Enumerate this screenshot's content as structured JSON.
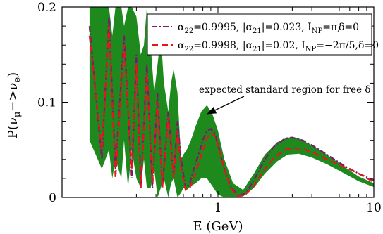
{
  "chart_data": {
    "type": "line",
    "xscale": "log",
    "xlabel": "E (GeV)",
    "ylabel": "P(ν_μ −> ν_e)",
    "xlim": [
      0.1,
      10
    ],
    "ylim": [
      0,
      0.2
    ],
    "xticks": [
      {
        "value": 1,
        "label": "1"
      },
      {
        "value": 10,
        "label": "10"
      }
    ],
    "yticks": [
      {
        "value": 0,
        "label": "0"
      },
      {
        "value": 0.1,
        "label": "0.1"
      },
      {
        "value": 0.2,
        "label": "0.2"
      }
    ],
    "grid": false,
    "legend_position": "top-right",
    "annotation": {
      "text": "expected standard region for free δ",
      "arrow_to": {
        "x": 0.86,
        "y": 0.088
      }
    },
    "band": {
      "name": "",
      "color": "#1e8a1e",
      "x": [
        0.15,
        0.18,
        0.2,
        0.21,
        0.22,
        0.24,
        0.25,
        0.265,
        0.28,
        0.3,
        0.32,
        0.335,
        0.35,
        0.37,
        0.39,
        0.41,
        0.43,
        0.45,
        0.48,
        0.5,
        0.52,
        0.55,
        0.58,
        0.6,
        0.63,
        0.67,
        0.72,
        0.78,
        0.85,
        0.92,
        1.0,
        1.1,
        1.25,
        1.45,
        1.7,
        2.0,
        2.4,
        2.8,
        3.3,
        4.0,
        5.0,
        6.5,
        8.0,
        10.0
      ],
      "upper": [
        0.2,
        0.2,
        0.2,
        0.17,
        0.2,
        0.2,
        0.18,
        0.2,
        0.2,
        0.19,
        0.15,
        0.16,
        0.2,
        0.16,
        0.11,
        0.14,
        0.17,
        0.12,
        0.09,
        0.12,
        0.135,
        0.11,
        0.04,
        0.045,
        0.05,
        0.06,
        0.075,
        0.09,
        0.097,
        0.088,
        0.07,
        0.04,
        0.015,
        0.008,
        0.025,
        0.045,
        0.058,
        0.063,
        0.062,
        0.055,
        0.045,
        0.032,
        0.022,
        0.015
      ],
      "lower": [
        0.06,
        0.03,
        0.05,
        0.02,
        0.04,
        0.02,
        0.06,
        0.01,
        0.05,
        0.02,
        0.01,
        0.04,
        0.01,
        0.01,
        0.03,
        0.0,
        0.01,
        0.02,
        0.0,
        0.015,
        0.02,
        0.0,
        0.005,
        0.01,
        0.008,
        0.012,
        0.015,
        0.02,
        0.02,
        0.012,
        0.003,
        0.0,
        0.0,
        0.001,
        0.01,
        0.025,
        0.038,
        0.045,
        0.046,
        0.042,
        0.035,
        0.025,
        0.017,
        0.011
      ]
    },
    "series": [
      {
        "name": "α22=0.9995, |α21|=0.023, INP=π, δ=0",
        "label_parts": {
          "a22": "=0.9995, |α",
          "a21": "|=0.023, I",
          "np": "=π,",
          "delta": "δ=0"
        },
        "color": "#7a1a6a",
        "dash": "dashdot",
        "x": [
          0.15,
          0.18,
          0.2,
          0.22,
          0.25,
          0.28,
          0.3,
          0.32,
          0.35,
          0.38,
          0.41,
          0.44,
          0.48,
          0.52,
          0.55,
          0.58,
          0.62,
          0.66,
          0.7,
          0.75,
          0.8,
          0.85,
          0.9,
          0.95,
          1.0,
          1.1,
          1.2,
          1.35,
          1.5,
          1.7,
          2.0,
          2.3,
          2.7,
          3.0,
          3.5,
          4.0,
          5.0,
          6.5,
          8.0,
          10.0
        ],
        "y": [
          0.18,
          0.04,
          0.19,
          0.03,
          0.17,
          0.02,
          0.15,
          0.01,
          0.14,
          0.01,
          0.11,
          0.01,
          0.09,
          0.02,
          0.08,
          0.04,
          0.01,
          0.015,
          0.03,
          0.045,
          0.06,
          0.07,
          0.072,
          0.068,
          0.056,
          0.03,
          0.012,
          0.002,
          0.004,
          0.018,
          0.04,
          0.054,
          0.062,
          0.063,
          0.06,
          0.055,
          0.045,
          0.033,
          0.025,
          0.018
        ]
      },
      {
        "name": "α22=0.9998, |α21|=0.02, INP=−2π/5, δ=0",
        "label_parts": {
          "a22": "=0.9998, |α",
          "a21": "|=0.02, I",
          "np": "=−2π/5,",
          "delta": "δ=0"
        },
        "color": "#e8141e",
        "dash": "dash",
        "x": [
          0.15,
          0.18,
          0.2,
          0.22,
          0.25,
          0.28,
          0.3,
          0.32,
          0.35,
          0.38,
          0.41,
          0.44,
          0.48,
          0.52,
          0.55,
          0.58,
          0.62,
          0.66,
          0.7,
          0.75,
          0.8,
          0.85,
          0.9,
          0.95,
          1.0,
          1.1,
          1.2,
          1.35,
          1.5,
          1.7,
          2.0,
          2.3,
          2.7,
          3.0,
          3.5,
          4.0,
          5.0,
          6.5,
          8.0,
          10.0
        ],
        "y": [
          0.17,
          0.05,
          0.18,
          0.02,
          0.16,
          0.03,
          0.14,
          0.01,
          0.13,
          0.015,
          0.1,
          0.01,
          0.085,
          0.02,
          0.07,
          0.03,
          0.008,
          0.01,
          0.02,
          0.035,
          0.05,
          0.062,
          0.068,
          0.065,
          0.055,
          0.03,
          0.01,
          0.001,
          0.003,
          0.012,
          0.03,
          0.042,
          0.05,
          0.052,
          0.051,
          0.048,
          0.04,
          0.032,
          0.025,
          0.016
        ]
      }
    ]
  }
}
